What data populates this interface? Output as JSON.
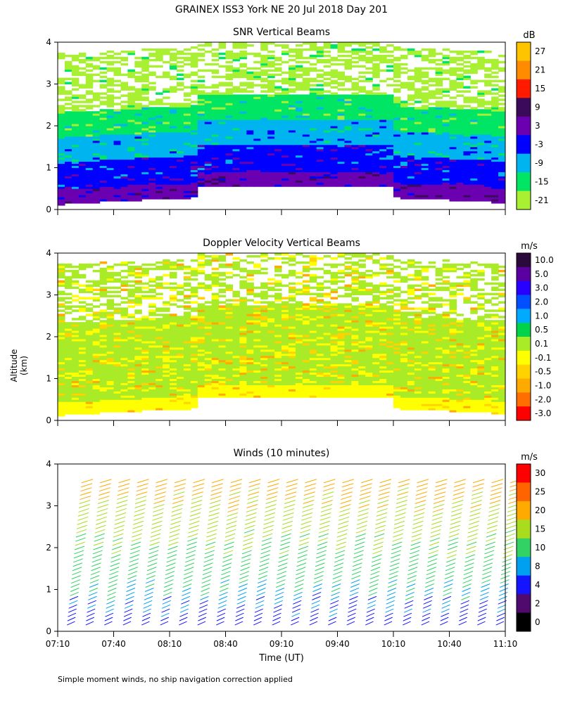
{
  "header": {
    "title": "GRAINEX ISS3 York NE  20 Jul 2018 Day 201"
  },
  "axes": {
    "ylabel": "Altitude (km)",
    "xlabel": "Time (UT)",
    "y_ticks": [
      "0",
      "1",
      "2",
      "3",
      "4"
    ],
    "x_ticks": [
      "07:10",
      "07:40",
      "08:10",
      "08:40",
      "09:10",
      "09:40",
      "10:10",
      "10:40",
      "11:10"
    ]
  },
  "footnote": "Simple moment winds, no ship navigation correction applied",
  "chart_data": [
    {
      "type": "heatmap",
      "title": "SNR Vertical Beams",
      "colorbar_unit": "dB",
      "colorbar_labels": [
        "27",
        "21",
        "15",
        "9",
        "3",
        "-3",
        "-9",
        "-15",
        "-21"
      ],
      "colorbar_colors": [
        "#ffc400",
        "#ff8c00",
        "#ff1a00",
        "#3c0a5a",
        "#6a00b0",
        "#0000ff",
        "#00b4f0",
        "#00e664",
        "#aaf032"
      ],
      "x_range": [
        "07:10",
        "11:10"
      ],
      "y_range_km": [
        0,
        4
      ],
      "layers_km": [
        {
          "from": 0.1,
          "to": 0.45,
          "level": "3"
        },
        {
          "from": 0.45,
          "to": 1.1,
          "level": "-3"
        },
        {
          "from": 1.1,
          "to": 1.7,
          "level": "-9"
        },
        {
          "from": 1.7,
          "to": 2.3,
          "level": "-15"
        },
        {
          "from": 2.3,
          "to": 3.7,
          "level": "-21 (patchy)"
        }
      ]
    },
    {
      "type": "heatmap",
      "title": "Doppler Velocity Vertical Beams",
      "colorbar_unit": "m/s",
      "colorbar_labels": [
        "10.0",
        "5.0",
        "3.0",
        "2.0",
        "1.0",
        "0.5",
        "0.1",
        "-0.1",
        "-0.5",
        "-1.0",
        "-2.0",
        "-3.0"
      ],
      "colorbar_colors": [
        "#2a0a3a",
        "#5a00a0",
        "#2800ff",
        "#0050ff",
        "#00aaff",
        "#00d24b",
        "#aaeb28",
        "#ffff00",
        "#ffd200",
        "#ffaa00",
        "#ff6e00",
        "#ff0000"
      ],
      "x_range": [
        "07:10",
        "11:10"
      ],
      "y_range_km": [
        0,
        4
      ],
      "layers_km": [
        {
          "from": 0.1,
          "to": 0.4,
          "level": "-0.1"
        },
        {
          "from": 0.4,
          "to": 2.3,
          "level": "0.1"
        },
        {
          "from": 2.3,
          "to": 3.7,
          "level": "0.1 (patchy)"
        }
      ]
    },
    {
      "type": "wind_barbs",
      "title": "Winds (10 minutes)",
      "colorbar_unit": "m/s",
      "colorbar_labels": [
        "30",
        "25",
        "20",
        "15",
        "10",
        "8",
        "4",
        "2",
        "0"
      ],
      "colorbar_colors": [
        "#ff0000",
        "#ff6400",
        "#ffaa00",
        "#aadc1e",
        "#32d264",
        "#00a0f0",
        "#1414ff",
        "#500a6e",
        "#000000"
      ],
      "interval_minutes": 10,
      "x_range": [
        "07:10",
        "11:10"
      ],
      "y_range_km": [
        0,
        4
      ],
      "profile_times": [
        "07:15",
        "07:25",
        "07:35",
        "07:45",
        "07:55",
        "08:05",
        "08:15",
        "08:25",
        "08:35",
        "08:45",
        "08:55",
        "09:05",
        "09:15",
        "09:25",
        "09:35",
        "09:45",
        "09:55",
        "10:05",
        "10:15",
        "10:25",
        "10:35",
        "10:45",
        "10:55",
        "11:05"
      ],
      "speed_profile_ms": [
        {
          "alt_km": 0.2,
          "speed": 6
        },
        {
          "alt_km": 0.8,
          "speed": 9
        },
        {
          "alt_km": 1.5,
          "speed": 13
        },
        {
          "alt_km": 2.5,
          "speed": 17
        },
        {
          "alt_km": 3.5,
          "speed": 22
        },
        {
          "alt_km": 4.0,
          "speed": 25
        }
      ]
    }
  ]
}
